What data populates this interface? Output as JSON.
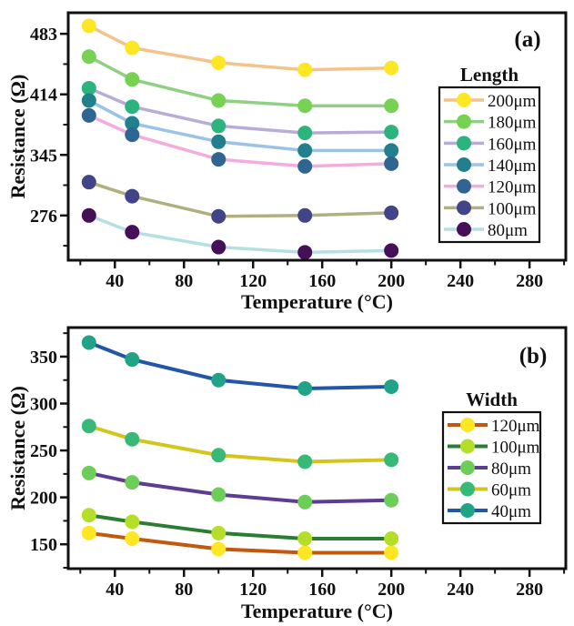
{
  "figure": {
    "background": "#ffffff",
    "text_color": "#111111",
    "frame_color": "#111111",
    "panel_label_color": "#d32f2f"
  },
  "chart_data": [
    {
      "type": "line",
      "panel_label": "(a)",
      "xlabel": "Temperature (°C)",
      "ylabel": "Resistance (Ω)",
      "xlim": [
        13,
        301
      ],
      "ylim": [
        225,
        507
      ],
      "xticks": [
        40,
        80,
        120,
        160,
        200,
        240,
        280
      ],
      "yticks": [
        276,
        345,
        414,
        483
      ],
      "grid": false,
      "legend": {
        "title": "Length",
        "position": "right"
      },
      "x": [
        25,
        50,
        100,
        150,
        200
      ],
      "series": [
        {
          "name": "200μm",
          "marker_color": "#fde725",
          "line_color": "#f4c28a",
          "values": [
            492,
            467,
            450,
            442,
            444
          ]
        },
        {
          "name": "180μm",
          "marker_color": "#77d153",
          "line_color": "#8fd083",
          "values": [
            457,
            431,
            407,
            401,
            401
          ]
        },
        {
          "name": "160μm",
          "marker_color": "#2db37d",
          "line_color": "#b9acd8",
          "values": [
            421,
            400,
            378,
            370,
            371
          ]
        },
        {
          "name": "140μm",
          "marker_color": "#22808e",
          "line_color": "#9cc2e8",
          "values": [
            407,
            381,
            360,
            350,
            350
          ]
        },
        {
          "name": "120μm",
          "marker_color": "#2f6590",
          "line_color": "#f4acdf",
          "values": [
            390,
            368,
            340,
            332,
            335
          ]
        },
        {
          "name": "100μm",
          "marker_color": "#414487",
          "line_color": "#b1af7d",
          "values": [
            314,
            298,
            275,
            276,
            279
          ]
        },
        {
          "name": "80μm",
          "marker_color": "#461059",
          "line_color": "#b5e0e3",
          "values": [
            276,
            257,
            240,
            234,
            236
          ]
        }
      ]
    },
    {
      "type": "line",
      "panel_label": "(b)",
      "xlabel": "Temperature (°C)",
      "ylabel": "Resistance (Ω)",
      "xlim": [
        13,
        301
      ],
      "ylim": [
        124,
        381
      ],
      "xticks": [
        40,
        80,
        120,
        160,
        200,
        240,
        280
      ],
      "yticks": [
        150,
        200,
        250,
        300,
        350
      ],
      "grid": false,
      "legend": {
        "title": "Width",
        "position": "right"
      },
      "x": [
        25,
        50,
        100,
        150,
        200
      ],
      "series": [
        {
          "name": "120μm",
          "marker_color": "#fde725",
          "line_color": "#c2590f",
          "values": [
            162,
            156,
            145,
            141,
            141
          ]
        },
        {
          "name": "100μm",
          "marker_color": "#b5de2b",
          "line_color": "#2c7d34",
          "values": [
            181,
            174,
            162,
            156,
            156
          ]
        },
        {
          "name": "80μm",
          "marker_color": "#6cce59",
          "line_color": "#5d3c93",
          "values": [
            226,
            216,
            203,
            195,
            197
          ]
        },
        {
          "name": "60μm",
          "marker_color": "#38b977",
          "line_color": "#d4c51d",
          "values": [
            276,
            262,
            245,
            238,
            240
          ]
        },
        {
          "name": "40μm",
          "marker_color": "#20a386",
          "line_color": "#2356a8",
          "values": [
            365,
            347,
            325,
            316,
            318
          ]
        }
      ]
    }
  ]
}
